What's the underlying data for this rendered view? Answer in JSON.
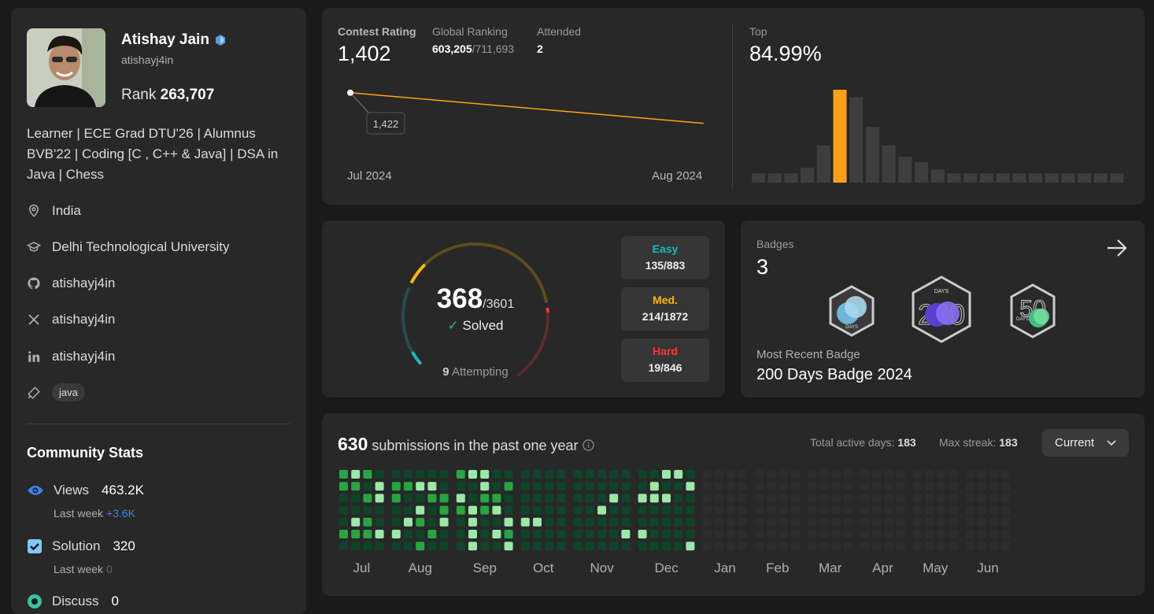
{
  "profile": {
    "name": "Atishay Jain",
    "username": "atishayj4in",
    "rank_label": "Rank",
    "rank_value": "263,707",
    "bio": "Learner | ECE Grad DTU'26 | Alumnus BVB'22 | Coding [C , C++ & Java] | DSA in Java | Chess",
    "location": "India",
    "school": "Delhi Technological University",
    "github": "atishayj4in",
    "x": "atishayj4in",
    "linkedin": "atishayj4in",
    "skill_tag": "java"
  },
  "community": {
    "title": "Community Stats",
    "views_label": "Views",
    "views_value": "463.2K",
    "views_week_label": "Last week",
    "views_week_value": "+3.6K",
    "solution_label": "Solution",
    "solution_value": "320",
    "solution_week_label": "Last week",
    "solution_week_value": "0",
    "discuss_label": "Discuss",
    "discuss_value": "0"
  },
  "contest": {
    "rating_label": "Contest Rating",
    "rating_value": "1,402",
    "ranking_label": "Global Ranking",
    "ranking_value": "603,205",
    "ranking_total": "/711,693",
    "attended_label": "Attended",
    "attended_value": "2",
    "tooltip": "1,422",
    "x_start": "Jul 2024",
    "x_end": "Aug 2024",
    "top_label": "Top",
    "top_value": "84.99%",
    "rating_series": [
      1422,
      1402
    ],
    "histogram": [
      0.5,
      0.5,
      0.5,
      0.8,
      2,
      5,
      4.6,
      3,
      2,
      1.4,
      1.1,
      0.7,
      0.5,
      0.5,
      0.5,
      0.5,
      0.5,
      0.5,
      0.5,
      0.5,
      0.5,
      0.5,
      0.5
    ],
    "highlight_index": 5,
    "accent": "#ffa116"
  },
  "solved": {
    "count": "368",
    "total": "/3601",
    "solved_label": "Solved",
    "attempting_count": "9",
    "attempting_label": "Attempting",
    "easy_label": "Easy",
    "easy_value": "135/883",
    "med_label": "Med.",
    "med_value": "214/1872",
    "hard_label": "Hard",
    "hard_value": "19/846",
    "easy_solved": 135,
    "easy_total": 883,
    "med_solved": 214,
    "med_total": 1872,
    "hard_solved": 19,
    "hard_total": 846,
    "colors": {
      "easy": "#1cbaba",
      "med": "#ffb700",
      "hard": "#f63737"
    }
  },
  "badges": {
    "label": "Badges",
    "count": "3",
    "recent_label": "Most Recent Badge",
    "recent_value": "200 Days Badge 2024",
    "badge_text": "DAYS",
    "badge_numbers": [
      "",
      "200",
      "50"
    ]
  },
  "submissions": {
    "count": "630",
    "label": "submissions in the past one year",
    "active_label": "Total active days:",
    "active_value": "183",
    "streak_label": "Max streak:",
    "streak_value": "183",
    "dropdown": "Current",
    "months": [
      "Jul",
      "Aug",
      "Sep",
      "Oct",
      "Nov",
      "Dec",
      "Jan",
      "Feb",
      "Mar",
      "Apr",
      "May",
      "Jun"
    ]
  }
}
